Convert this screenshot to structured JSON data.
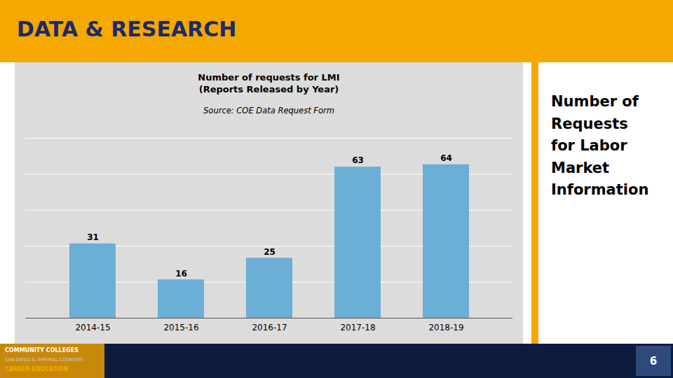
{
  "chart_data": {
    "type": "bar",
    "title": "Number of requests for LMI\n(Reports Released by Year)",
    "subtitle": "Source: COE Data Request Form",
    "categories": [
      "2014-15",
      "2015-16",
      "2016-17",
      "2017-18",
      "2018-19"
    ],
    "values": [
      31,
      16,
      25,
      63,
      64
    ],
    "color": "#6BAED6",
    "ylim": [
      0,
      75
    ],
    "yticks": [
      0,
      15,
      30,
      45,
      60,
      75
    ],
    "grid": true,
    "tick_labels": "x",
    "data_labels": true,
    "annotations": [
      "DATA & RESEARCH",
      "Number of\nRequests\nfor Labor\nMarket\nInformation",
      "COMMUNITY COLLEGES",
      "SAN DIEGO & IMPERIAL COUNTIES",
      "CAREER EDUCATION",
      "6"
    ]
  }
}
